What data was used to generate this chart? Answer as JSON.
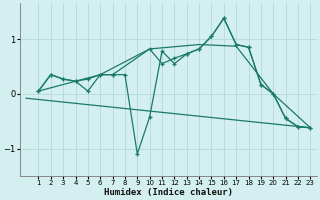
{
  "xlabel": "Humidex (Indice chaleur)",
  "background_color": "#d4efef",
  "grid_color": "#b8dcdc",
  "line_color": "#1a7a6a",
  "xlim": [
    -0.5,
    23.5
  ],
  "ylim": [
    -1.5,
    1.65
  ],
  "yticks": [
    -1,
    0,
    1
  ],
  "xticks": [
    1,
    2,
    3,
    4,
    5,
    6,
    7,
    8,
    9,
    10,
    11,
    12,
    13,
    14,
    15,
    16,
    17,
    18,
    19,
    20,
    21,
    22,
    23
  ],
  "series": [
    {
      "x": [
        1,
        2,
        3,
        4,
        5,
        6,
        7,
        8,
        9,
        10,
        11,
        12,
        13,
        14,
        15,
        16,
        17,
        18,
        19,
        20,
        21,
        22,
        23
      ],
      "y": [
        0.05,
        0.35,
        0.27,
        0.23,
        0.27,
        0.35,
        0.35,
        0.35,
        -1.1,
        -0.42,
        0.78,
        0.55,
        0.73,
        0.82,
        1.05,
        1.38,
        0.9,
        0.85,
        0.17,
        0.0,
        -0.45,
        -0.6,
        -0.62
      ],
      "has_marker": true
    },
    {
      "x": [
        1,
        2,
        3,
        4,
        5,
        6,
        7,
        10,
        11,
        12,
        13,
        14,
        15,
        16,
        17,
        18,
        19,
        20,
        21,
        22,
        23
      ],
      "y": [
        0.05,
        0.35,
        0.27,
        0.23,
        0.05,
        0.35,
        0.35,
        0.82,
        0.55,
        0.65,
        0.73,
        0.82,
        1.05,
        1.38,
        0.9,
        0.85,
        0.17,
        0.0,
        -0.45,
        -0.6,
        -0.62
      ],
      "has_marker": true
    },
    {
      "x": [
        1,
        6,
        10,
        14,
        17,
        20,
        23
      ],
      "y": [
        0.05,
        0.35,
        0.82,
        0.9,
        0.87,
        0.0,
        -0.62
      ],
      "has_marker": false
    },
    {
      "x": [
        0,
        23
      ],
      "y": [
        -0.08,
        -0.62
      ],
      "has_marker": false
    }
  ]
}
